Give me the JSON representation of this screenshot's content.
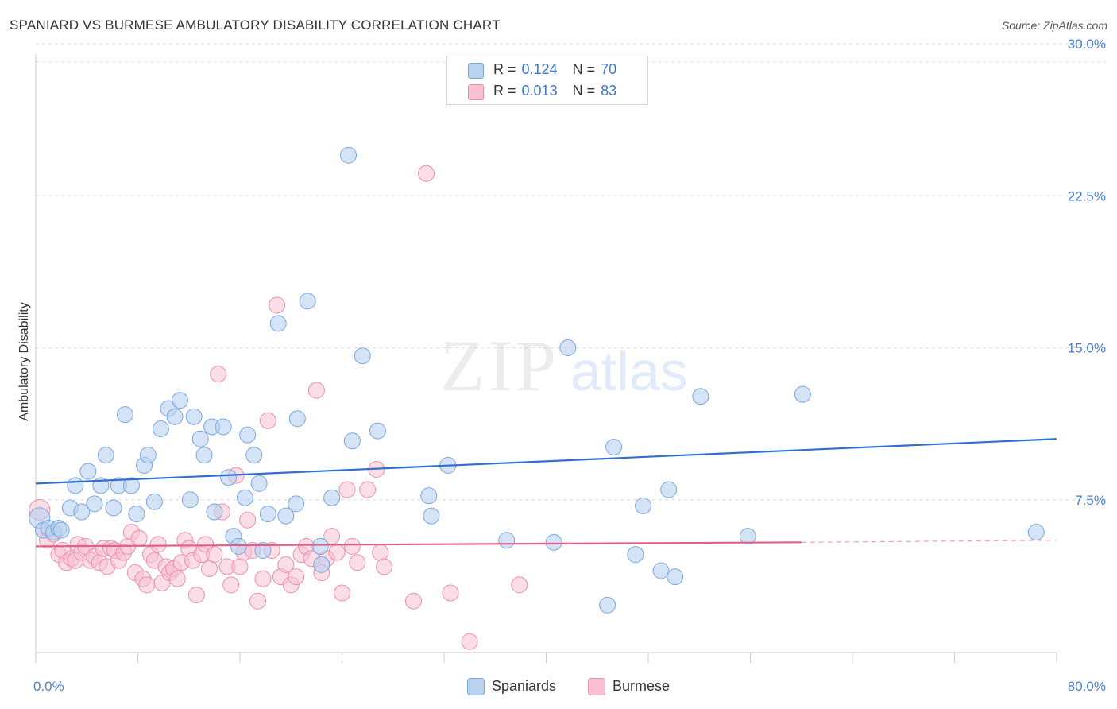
{
  "header": {
    "title": "SPANIARD VS BURMESE AMBULATORY DISABILITY CORRELATION CHART",
    "source": "Source: ZipAtlas.com"
  },
  "watermark": {
    "zip": "ZIP",
    "atlas": "atlas"
  },
  "legend": {
    "rows": [
      {
        "r_label": "R =",
        "r_value": "0.124",
        "n_label": "N =",
        "n_value": "70"
      },
      {
        "r_label": "R =",
        "r_value": "0.013",
        "n_label": "N =",
        "n_value": "83"
      }
    ]
  },
  "bottom_legend": [
    "Spaniards",
    "Burmese"
  ],
  "colors": {
    "spaniards_fill": "#b8d2f0",
    "spaniards_stroke": "#7aa6e0",
    "spaniards_line": "#2f6fd0",
    "burmese_fill": "#f7c1d2",
    "burmese_stroke": "#ec8fae",
    "burmese_line": "#e0608c",
    "grid": "#dddddd",
    "tick_text": "#4a7fcf"
  },
  "chart_data": {
    "type": "scatter",
    "title": "SPANIARD VS BURMESE AMBULATORY DISABILITY CORRELATION CHART",
    "xlabel": "",
    "ylabel": "Ambulatory Disability",
    "xlim": [
      0,
      80
    ],
    "ylim": [
      0,
      31
    ],
    "x_tick_labels": [
      "0.0%",
      "80.0%"
    ],
    "y_ticks": [
      7.5,
      15.0,
      22.5,
      30.0
    ],
    "y_tick_labels": [
      "7.5%",
      "15.0%",
      "22.5%",
      "30.0%"
    ],
    "grid": "horizontal dashed",
    "legend_position": "top-center",
    "series": [
      {
        "name": "Spaniards",
        "r": 0.124,
        "n": 70,
        "trend": {
          "x": [
            0,
            80
          ],
          "y": [
            8.3,
            10.5
          ]
        },
        "points": [
          [
            0.3,
            6.6
          ],
          [
            0.6,
            6.0
          ],
          [
            1.0,
            6.1
          ],
          [
            1.4,
            5.9
          ],
          [
            1.8,
            6.1
          ],
          [
            2.0,
            6.0
          ],
          [
            2.7,
            7.1
          ],
          [
            3.1,
            8.2
          ],
          [
            3.6,
            6.9
          ],
          [
            4.1,
            8.9
          ],
          [
            4.6,
            7.3
          ],
          [
            5.1,
            8.2
          ],
          [
            5.5,
            9.7
          ],
          [
            6.1,
            7.1
          ],
          [
            6.5,
            8.2
          ],
          [
            7.0,
            11.7
          ],
          [
            7.5,
            8.2
          ],
          [
            7.9,
            6.8
          ],
          [
            8.5,
            9.2
          ],
          [
            8.8,
            9.7
          ],
          [
            9.3,
            7.4
          ],
          [
            9.8,
            11.0
          ],
          [
            10.4,
            12.0
          ],
          [
            10.9,
            11.6
          ],
          [
            11.3,
            12.4
          ],
          [
            12.1,
            7.5
          ],
          [
            12.4,
            11.6
          ],
          [
            12.9,
            10.5
          ],
          [
            13.2,
            9.7
          ],
          [
            13.8,
            11.1
          ],
          [
            14.0,
            6.9
          ],
          [
            14.7,
            11.1
          ],
          [
            15.1,
            8.6
          ],
          [
            15.5,
            5.7
          ],
          [
            15.9,
            5.2
          ],
          [
            16.4,
            7.6
          ],
          [
            16.6,
            10.7
          ],
          [
            17.1,
            9.7
          ],
          [
            17.5,
            8.3
          ],
          [
            17.8,
            5.0
          ],
          [
            18.2,
            6.8
          ],
          [
            19.0,
            16.2
          ],
          [
            19.6,
            6.7
          ],
          [
            20.4,
            7.3
          ],
          [
            20.5,
            11.5
          ],
          [
            21.3,
            17.3
          ],
          [
            22.3,
            5.2
          ],
          [
            22.4,
            4.3
          ],
          [
            23.2,
            7.6
          ],
          [
            24.5,
            24.5
          ],
          [
            24.8,
            10.4
          ],
          [
            25.6,
            14.6
          ],
          [
            26.8,
            10.9
          ],
          [
            30.8,
            7.7
          ],
          [
            31.0,
            6.7
          ],
          [
            32.3,
            9.2
          ],
          [
            36.9,
            5.5
          ],
          [
            40.6,
            5.4
          ],
          [
            41.7,
            15.0
          ],
          [
            44.8,
            2.3
          ],
          [
            45.3,
            10.1
          ],
          [
            47.0,
            4.8
          ],
          [
            47.6,
            7.2
          ],
          [
            49.0,
            4.0
          ],
          [
            49.6,
            8.0
          ],
          [
            50.1,
            3.7
          ],
          [
            52.1,
            12.6
          ],
          [
            55.8,
            5.7
          ],
          [
            60.1,
            12.7
          ],
          [
            78.4,
            5.9
          ]
        ]
      },
      {
        "name": "Burmese",
        "r": 0.013,
        "n": 83,
        "trend": {
          "x": [
            0,
            60
          ],
          "y": [
            5.2,
            5.4
          ]
        },
        "trend_dashed": {
          "x": [
            60,
            80
          ],
          "y": [
            5.4,
            5.5
          ]
        },
        "points": [
          [
            0.3,
            7.0
          ],
          [
            0.6,
            6.0
          ],
          [
            0.9,
            5.5
          ],
          [
            1.4,
            5.8
          ],
          [
            1.8,
            4.8
          ],
          [
            2.1,
            5.0
          ],
          [
            2.4,
            4.4
          ],
          [
            2.8,
            4.6
          ],
          [
            3.1,
            4.5
          ],
          [
            3.3,
            5.3
          ],
          [
            3.6,
            4.9
          ],
          [
            3.9,
            5.2
          ],
          [
            4.3,
            4.5
          ],
          [
            4.6,
            4.7
          ],
          [
            5.0,
            4.4
          ],
          [
            5.3,
            5.1
          ],
          [
            5.6,
            4.2
          ],
          [
            5.9,
            5.1
          ],
          [
            6.2,
            5.0
          ],
          [
            6.5,
            4.5
          ],
          [
            6.9,
            4.9
          ],
          [
            7.2,
            5.2
          ],
          [
            7.5,
            5.9
          ],
          [
            7.8,
            3.9
          ],
          [
            8.1,
            5.6
          ],
          [
            8.4,
            3.6
          ],
          [
            8.7,
            3.3
          ],
          [
            9.0,
            4.8
          ],
          [
            9.3,
            4.5
          ],
          [
            9.6,
            5.3
          ],
          [
            9.9,
            3.4
          ],
          [
            10.2,
            4.2
          ],
          [
            10.5,
            3.9
          ],
          [
            10.8,
            4.1
          ],
          [
            11.1,
            3.6
          ],
          [
            11.4,
            4.4
          ],
          [
            11.7,
            5.5
          ],
          [
            12.0,
            5.1
          ],
          [
            12.3,
            4.5
          ],
          [
            12.6,
            2.8
          ],
          [
            13.0,
            4.8
          ],
          [
            13.3,
            5.3
          ],
          [
            13.6,
            4.1
          ],
          [
            14.0,
            4.8
          ],
          [
            14.3,
            13.7
          ],
          [
            14.6,
            6.9
          ],
          [
            15.0,
            4.2
          ],
          [
            15.3,
            3.3
          ],
          [
            15.7,
            8.7
          ],
          [
            16.0,
            4.2
          ],
          [
            16.3,
            4.9
          ],
          [
            16.6,
            6.5
          ],
          [
            17.0,
            5.0
          ],
          [
            17.4,
            2.5
          ],
          [
            17.8,
            3.6
          ],
          [
            18.2,
            11.4
          ],
          [
            18.5,
            5.0
          ],
          [
            18.9,
            17.1
          ],
          [
            19.2,
            3.7
          ],
          [
            19.6,
            4.3
          ],
          [
            20.0,
            3.3
          ],
          [
            20.4,
            3.7
          ],
          [
            20.8,
            4.8
          ],
          [
            21.2,
            5.2
          ],
          [
            21.6,
            4.6
          ],
          [
            22.0,
            12.9
          ],
          [
            22.4,
            3.9
          ],
          [
            22.8,
            4.6
          ],
          [
            23.2,
            5.7
          ],
          [
            23.6,
            4.9
          ],
          [
            24.0,
            2.9
          ],
          [
            24.4,
            8.0
          ],
          [
            24.8,
            5.2
          ],
          [
            25.2,
            4.4
          ],
          [
            26.0,
            8.0
          ],
          [
            26.7,
            9.0
          ],
          [
            27.0,
            4.9
          ],
          [
            27.3,
            4.2
          ],
          [
            29.6,
            2.5
          ],
          [
            30.6,
            23.6
          ],
          [
            32.5,
            2.9
          ],
          [
            34.0,
            0.5
          ],
          [
            37.9,
            3.3
          ]
        ]
      }
    ]
  }
}
